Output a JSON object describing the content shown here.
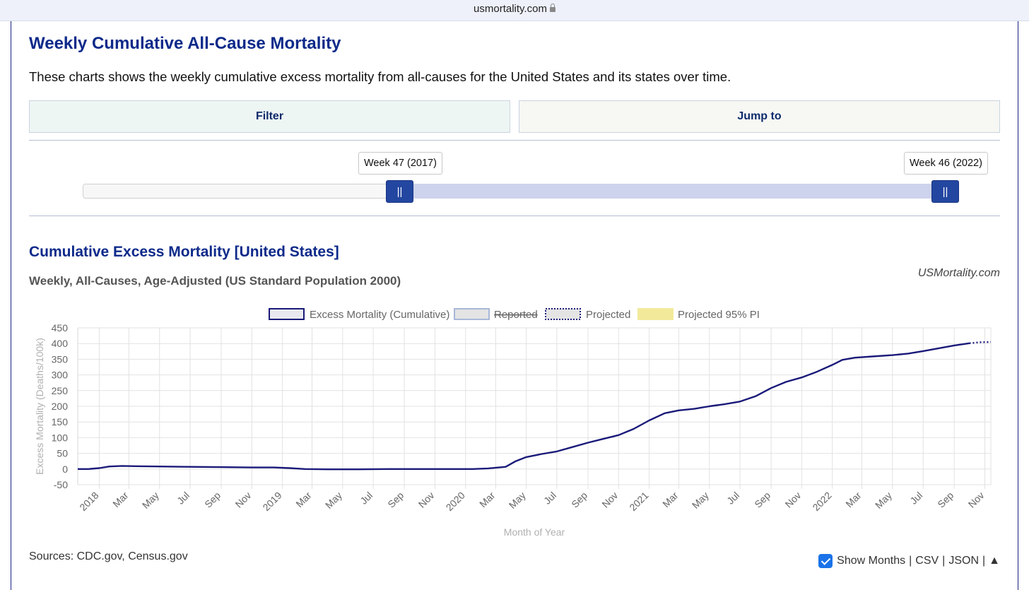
{
  "browser": {
    "url": "usmortality.com"
  },
  "page": {
    "title": "Weekly Cumulative All-Cause Mortality",
    "intro": "These charts shows the weekly cumulative excess mortality from all-causes for the United States and its states over time."
  },
  "tabs": {
    "filter_label": "Filter",
    "jump_label": "Jump to"
  },
  "slider": {
    "start_label": "Week 47 (2017)",
    "end_label": "Week 46 (2022)",
    "start_fraction": 0.361,
    "end_fraction": 0.984,
    "handle_glyph": "||"
  },
  "chart": {
    "title": "Cumulative Excess Mortality [United States]",
    "subtitle": "Weekly, All-Causes, Age-Adjusted (US Standard Population 2000)",
    "brand": "USMortality.com"
  },
  "footer": {
    "sources": "Sources: CDC.gov, Census.gov",
    "show_months_label": "Show Months",
    "csv_label": "CSV",
    "json_label": "JSON",
    "top_glyph": "▲",
    "separator": "|"
  },
  "chart_data": {
    "type": "line",
    "ylabel": "Excess Mortality (Deaths/100k)",
    "xlabel": "Month of Year",
    "ylim": [
      -50,
      450
    ],
    "yticks": [
      -50,
      0,
      50,
      100,
      150,
      200,
      250,
      300,
      350,
      400,
      450
    ],
    "x_range": [
      "2017-11-19",
      "2022-11-13"
    ],
    "x_ticks": [
      {
        "date": "2018-01-01",
        "label": "2018"
      },
      {
        "date": "2018-03-01",
        "label": "Mar"
      },
      {
        "date": "2018-05-01",
        "label": "May"
      },
      {
        "date": "2018-07-01",
        "label": "Jul"
      },
      {
        "date": "2018-09-01",
        "label": "Sep"
      },
      {
        "date": "2018-11-01",
        "label": "Nov"
      },
      {
        "date": "2019-01-01",
        "label": "2019"
      },
      {
        "date": "2019-03-01",
        "label": "Mar"
      },
      {
        "date": "2019-05-01",
        "label": "May"
      },
      {
        "date": "2019-07-01",
        "label": "Jul"
      },
      {
        "date": "2019-09-01",
        "label": "Sep"
      },
      {
        "date": "2019-11-01",
        "label": "Nov"
      },
      {
        "date": "2020-01-01",
        "label": "2020"
      },
      {
        "date": "2020-03-01",
        "label": "Mar"
      },
      {
        "date": "2020-05-01",
        "label": "May"
      },
      {
        "date": "2020-07-01",
        "label": "Jul"
      },
      {
        "date": "2020-09-01",
        "label": "Sep"
      },
      {
        "date": "2020-11-01",
        "label": "Nov"
      },
      {
        "date": "2021-01-01",
        "label": "2021"
      },
      {
        "date": "2021-03-01",
        "label": "Mar"
      },
      {
        "date": "2021-05-01",
        "label": "May"
      },
      {
        "date": "2021-07-01",
        "label": "Jul"
      },
      {
        "date": "2021-09-01",
        "label": "Sep"
      },
      {
        "date": "2021-11-01",
        "label": "Nov"
      },
      {
        "date": "2022-01-01",
        "label": "2022"
      },
      {
        "date": "2022-03-01",
        "label": "Mar"
      },
      {
        "date": "2022-05-01",
        "label": "May"
      },
      {
        "date": "2022-07-01",
        "label": "Jul"
      },
      {
        "date": "2022-09-01",
        "label": "Sep"
      },
      {
        "date": "2022-11-01",
        "label": "Nov"
      }
    ],
    "grid": true,
    "legend_position": "top-center",
    "legend": [
      {
        "label": "Excess Mortality (Cumulative)",
        "style": "solid",
        "fill": "#e8e8ee",
        "stroke": "#1a1a7a",
        "struck": false
      },
      {
        "label": "Reported",
        "style": "solid",
        "fill": "#e4e4e4",
        "stroke": "#a8b8d8",
        "struck": true
      },
      {
        "label": "Projected",
        "style": "dotted",
        "fill": "#e4e4e4",
        "stroke": "#1a1a7a",
        "struck": false
      },
      {
        "label": "Projected 95% PI",
        "style": "solid",
        "fill": "#f2ea9a",
        "stroke": "#f2ea9a",
        "struck": false
      }
    ],
    "series": [
      {
        "name": "Excess Mortality (Cumulative)",
        "color": "#1a1a7a",
        "points": [
          [
            "2017-11-19",
            0
          ],
          [
            "2017-12-10",
            0
          ],
          [
            "2018-01-01",
            3
          ],
          [
            "2018-01-21",
            8
          ],
          [
            "2018-02-15",
            10
          ],
          [
            "2018-03-15",
            9
          ],
          [
            "2018-05-01",
            8
          ],
          [
            "2018-07-01",
            7
          ],
          [
            "2018-09-01",
            6
          ],
          [
            "2018-11-01",
            5
          ],
          [
            "2018-12-15",
            5
          ],
          [
            "2019-01-15",
            3
          ],
          [
            "2019-02-15",
            0
          ],
          [
            "2019-04-01",
            -1
          ],
          [
            "2019-06-01",
            -1
          ],
          [
            "2019-08-01",
            0
          ],
          [
            "2019-10-01",
            0
          ],
          [
            "2019-12-01",
            0
          ],
          [
            "2020-01-15",
            0
          ],
          [
            "2020-02-15",
            2
          ],
          [
            "2020-03-21",
            7
          ],
          [
            "2020-04-10",
            25
          ],
          [
            "2020-05-01",
            38
          ],
          [
            "2020-06-01",
            48
          ],
          [
            "2020-07-01",
            56
          ],
          [
            "2020-08-01",
            70
          ],
          [
            "2020-09-01",
            84
          ],
          [
            "2020-10-01",
            96
          ],
          [
            "2020-11-01",
            108
          ],
          [
            "2020-12-01",
            128
          ],
          [
            "2021-01-01",
            155
          ],
          [
            "2021-02-01",
            178
          ],
          [
            "2021-03-01",
            187
          ],
          [
            "2021-04-01",
            192
          ],
          [
            "2021-05-01",
            200
          ],
          [
            "2021-06-01",
            207
          ],
          [
            "2021-07-01",
            215
          ],
          [
            "2021-08-01",
            232
          ],
          [
            "2021-09-01",
            258
          ],
          [
            "2021-10-01",
            278
          ],
          [
            "2021-11-01",
            292
          ],
          [
            "2021-12-01",
            310
          ],
          [
            "2022-01-01",
            332
          ],
          [
            "2022-01-21",
            348
          ],
          [
            "2022-02-15",
            355
          ],
          [
            "2022-04-01",
            360
          ],
          [
            "2022-05-01",
            363
          ],
          [
            "2022-06-01",
            368
          ],
          [
            "2022-07-01",
            376
          ],
          [
            "2022-08-01",
            385
          ],
          [
            "2022-09-01",
            394
          ],
          [
            "2022-10-01",
            401
          ]
        ]
      },
      {
        "name": "Projected",
        "color": "#1a1a7a",
        "style": "dotted",
        "points": [
          [
            "2022-10-01",
            401
          ],
          [
            "2022-10-22",
            404
          ],
          [
            "2022-11-13",
            405
          ]
        ]
      }
    ]
  }
}
